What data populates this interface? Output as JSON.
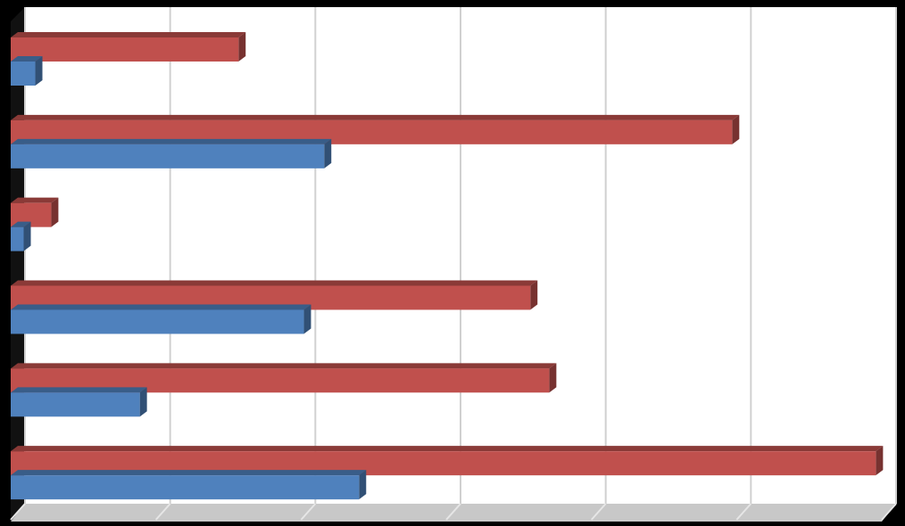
{
  "chart_data": {
    "type": "bar",
    "orientation": "horizontal",
    "3d": true,
    "categories": [
      null,
      null,
      null,
      null,
      null,
      null
    ],
    "series": [
      {
        "color": "#c0504d",
        "values": [
          15.2,
          49.2,
          2.3,
          35.3,
          36.6,
          59.1
        ]
      },
      {
        "color": "#4f81bd",
        "values": [
          1.2,
          21.1,
          0.4,
          19.7,
          8.4,
          23.5
        ]
      }
    ],
    "xlim": [
      0,
      60
    ],
    "xticks": [
      0,
      10,
      20,
      30,
      40,
      50,
      60
    ],
    "grid": true
  }
}
